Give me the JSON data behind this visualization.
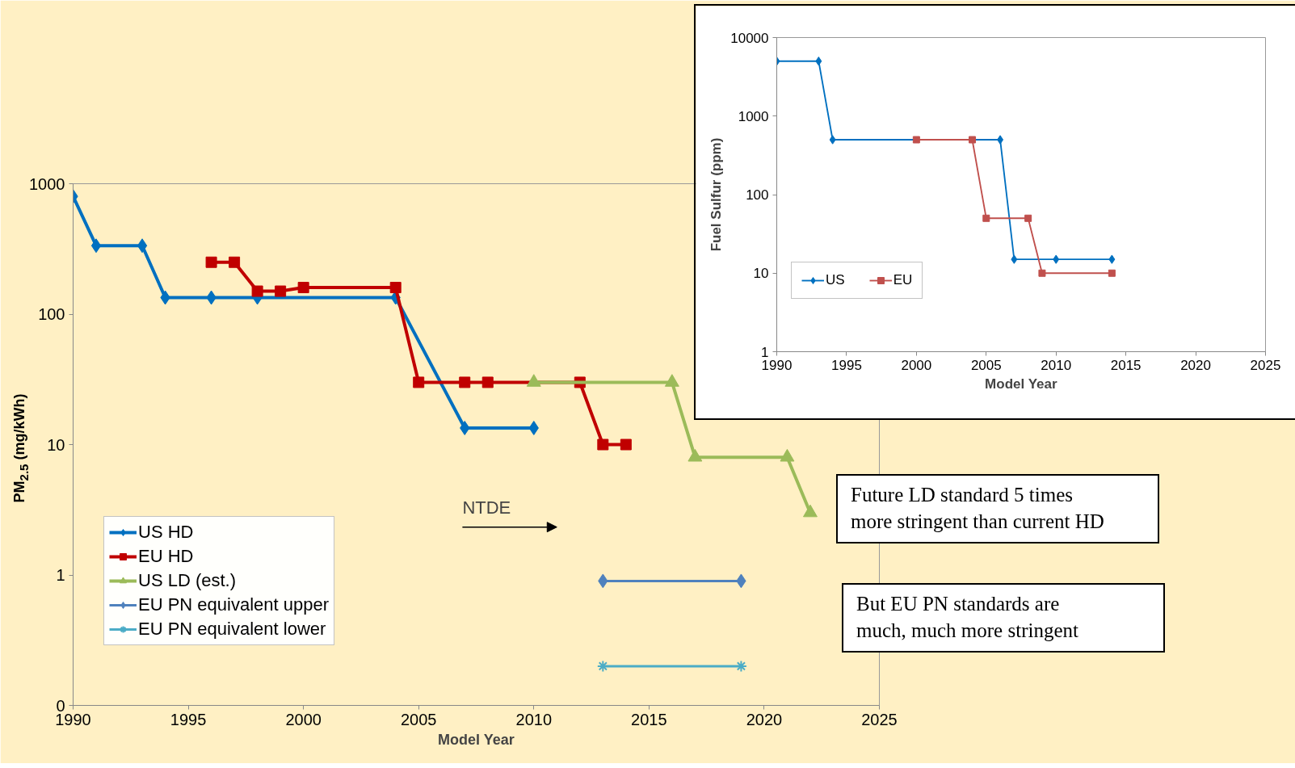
{
  "chart_data": [
    {
      "type": "line",
      "xlabel": "Model Year",
      "ylabel": "PM$_{2.5}$ (mg/kWh)",
      "log": "y",
      "xlim": [
        1990,
        2025
      ],
      "xticks": [
        1990,
        1995,
        2000,
        2005,
        2010,
        2015,
        2020,
        2025
      ],
      "ylim": [
        0.1,
        1000
      ],
      "yticks": [
        {
          "value": 0.1,
          "label": "0"
        },
        1,
        10,
        100,
        1000
      ],
      "grid": false,
      "legend": "bottom left",
      "series": [
        {
          "name": "US HD",
          "color": "#0070c0",
          "marker": "diamond",
          "x": [
            1990,
            1991,
            1993,
            1994,
            1996,
            1998,
            2004,
            2007,
            2010
          ],
          "values": [
            800,
            335,
            335,
            134,
            134,
            134,
            134,
            13.4,
            13.4
          ]
        },
        {
          "name": "EU HD",
          "color": "#c00000",
          "marker": "square",
          "x": [
            1996,
            1997,
            1998,
            1999,
            2000,
            2004,
            2005,
            2007,
            2008,
            2012,
            2013,
            2014
          ],
          "values": [
            250,
            250,
            150,
            150,
            160,
            160,
            30,
            30,
            30,
            30,
            10,
            10
          ]
        },
        {
          "name": "US LD (est.)",
          "color": "#9bbb59",
          "marker": "triangle",
          "x": [
            2010,
            2016,
            2017,
            2021,
            2022
          ],
          "values": [
            30,
            30,
            8,
            8,
            3
          ]
        },
        {
          "name": "EU PN equivalent upper",
          "color": "#4f81bd",
          "marker": "diamond",
          "x": [
            2013,
            2019
          ],
          "values": [
            0.9,
            0.9
          ]
        },
        {
          "name": "EU PN equivalent lower",
          "color": "#4bacc6",
          "marker": "cross",
          "x": [
            2013,
            2019
          ],
          "values": [
            0.2,
            0.2
          ]
        }
      ],
      "annotations": [
        "NTDE",
        "Future LD standard 5 times\nmore stringent than current HD",
        "But EU PN standards are\nmuch, much more stringent"
      ]
    },
    {
      "type": "line",
      "xlabel": "Model Year",
      "ylabel": "Fuel Sulfur (ppm)",
      "log": "y",
      "xlim": [
        1990,
        2025
      ],
      "xticks": [
        1990,
        1995,
        2000,
        2005,
        2010,
        2015,
        2020,
        2025
      ],
      "ylim": [
        1,
        10000
      ],
      "yticks": [
        1,
        10,
        100,
        1000,
        10000
      ],
      "grid": false,
      "legend": "bottom left",
      "series": [
        {
          "name": "US",
          "color": "#0070c0",
          "marker": "diamond",
          "x": [
            1990,
            1993,
            1994,
            2006,
            2007,
            2010,
            2014
          ],
          "values": [
            5000,
            5000,
            500,
            500,
            15,
            15,
            15
          ]
        },
        {
          "name": "EU",
          "color": "#c0504d",
          "marker": "square",
          "x": [
            2000,
            2004,
            2005,
            2008,
            2009,
            2014
          ],
          "values": [
            500,
            500,
            50,
            50,
            10,
            10
          ]
        }
      ]
    }
  ]
}
